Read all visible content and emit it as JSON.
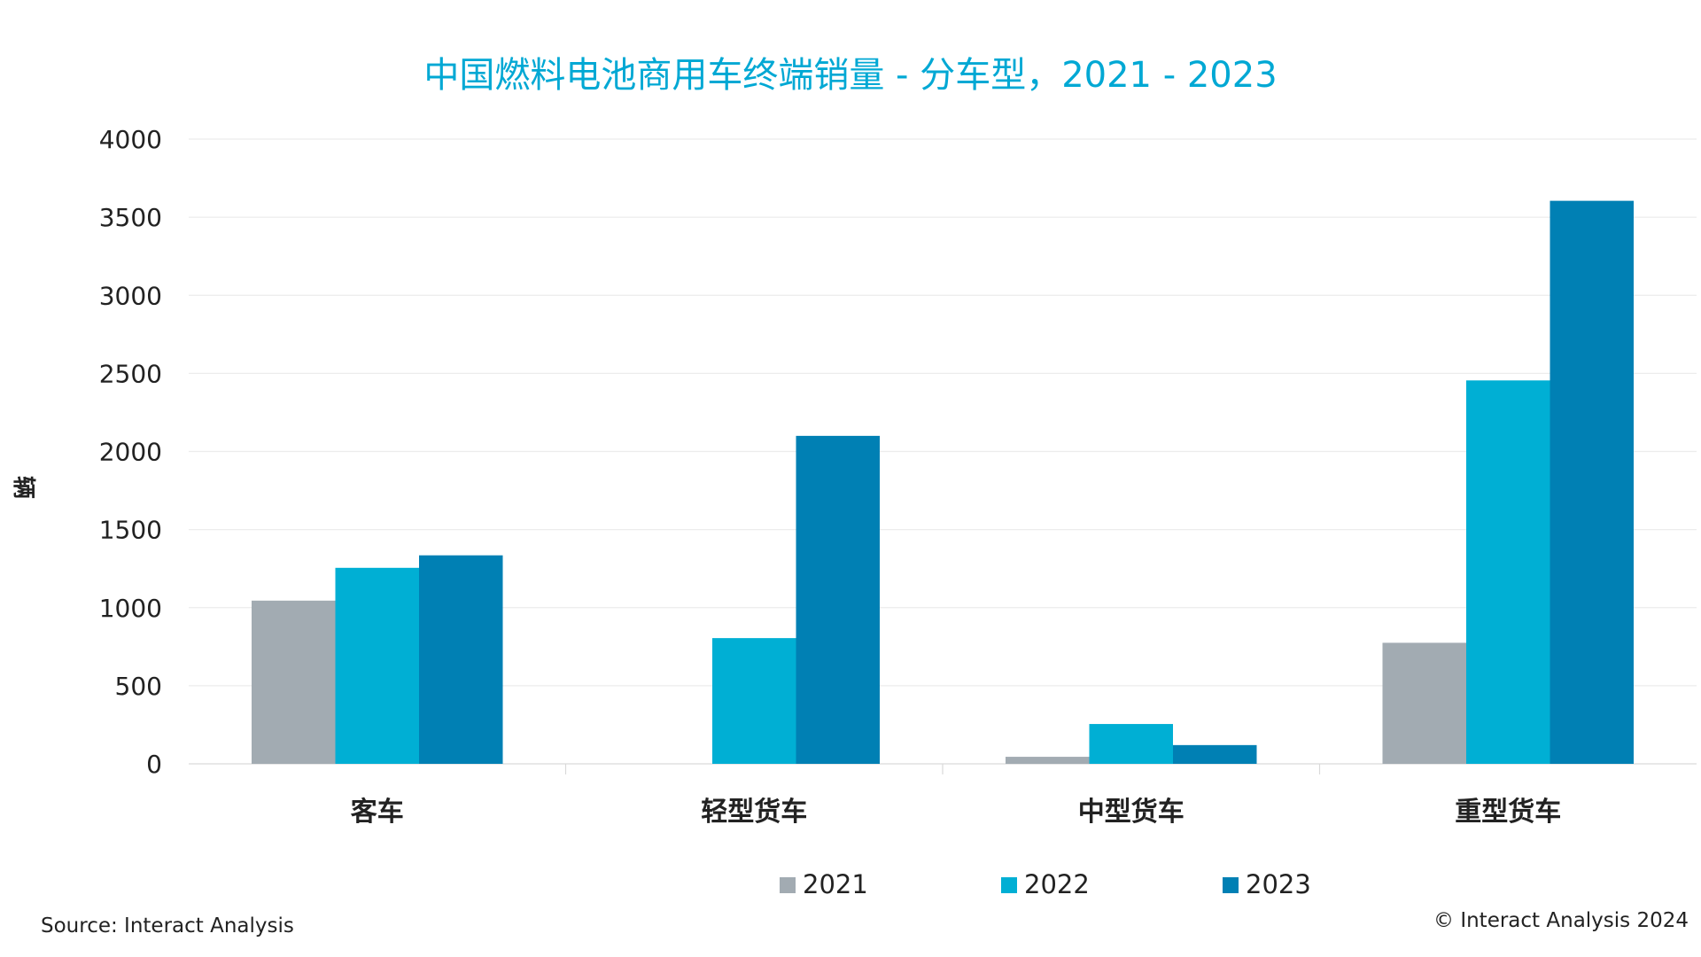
{
  "chart_data": {
    "type": "bar",
    "title": "中国燃料电池商用车终端销量 - 分车型，2021 - 2023",
    "ylabel": "辆",
    "xlabel": "",
    "ylim": [
      0,
      4000
    ],
    "yticks": [
      "0",
      "500",
      "1000",
      "1500",
      "2000",
      "2500",
      "3000",
      "3500",
      "4000"
    ],
    "categories": [
      "客车",
      "轻型货车",
      "中型货车",
      "重型货车"
    ],
    "series": [
      {
        "name": "2021",
        "color": "#a2abb2",
        "values": [
          1045,
          0,
          45,
          775
        ]
      },
      {
        "name": "2022",
        "color": "#00afd4",
        "values": [
          1255,
          805,
          255,
          2455
        ]
      },
      {
        "name": "2023",
        "color": "#0080b4",
        "values": [
          1335,
          2100,
          120,
          3605
        ]
      }
    ],
    "grid": true,
    "legend_position": "bottom"
  },
  "footer": {
    "source": "Source: Interact Analysis",
    "copyright": "© Interact Analysis 2024"
  }
}
